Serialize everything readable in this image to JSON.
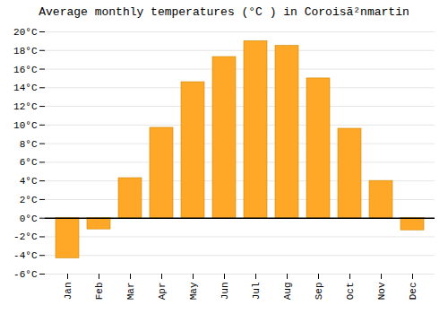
{
  "chart_data": {
    "type": "bar",
    "title": "Average monthly temperatures (°C ) in Coroisã²nmartin",
    "categories": [
      "Jan",
      "Feb",
      "Mar",
      "Apr",
      "May",
      "Jun",
      "Jul",
      "Aug",
      "Sep",
      "Oct",
      "Nov",
      "Dec"
    ],
    "values": [
      -4.3,
      -1.2,
      4.3,
      9.7,
      14.6,
      17.3,
      19.0,
      18.5,
      15.0,
      9.6,
      4.0,
      -1.3
    ],
    "color": "#FFA726",
    "ylim": [
      -6,
      20
    ],
    "yticks": [
      {
        "value": -6,
        "label": "-6°C"
      },
      {
        "value": -4,
        "label": "-4°C"
      },
      {
        "value": -2,
        "label": "-2°C"
      },
      {
        "value": 0,
        "label": "0°C"
      },
      {
        "value": 2,
        "label": "2°C"
      },
      {
        "value": 4,
        "label": "4°C"
      },
      {
        "value": 6,
        "label": "6°C"
      },
      {
        "value": 8,
        "label": "8°C"
      },
      {
        "value": 10,
        "label": "10°C"
      },
      {
        "value": 12,
        "label": "12°C"
      },
      {
        "value": 14,
        "label": "14°C"
      },
      {
        "value": 16,
        "label": "16°C"
      },
      {
        "value": 18,
        "label": "18°C"
      },
      {
        "value": 20,
        "label": "20°C"
      }
    ],
    "grid": true
  }
}
